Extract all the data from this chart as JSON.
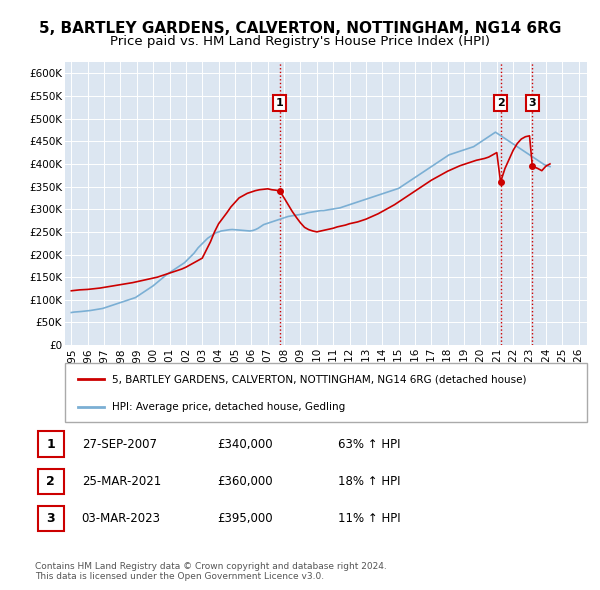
{
  "title": "5, BARTLEY GARDENS, CALVERTON, NOTTINGHAM, NG14 6RG",
  "subtitle": "Price paid vs. HM Land Registry's House Price Index (HPI)",
  "ylabel_ticks": [
    "£0",
    "£50K",
    "£100K",
    "£150K",
    "£200K",
    "£250K",
    "£300K",
    "£350K",
    "£400K",
    "£450K",
    "£500K",
    "£550K",
    "£600K"
  ],
  "ytick_values": [
    0,
    50000,
    100000,
    150000,
    200000,
    250000,
    300000,
    350000,
    400000,
    450000,
    500000,
    550000,
    600000
  ],
  "ylim": [
    0,
    625000
  ],
  "xlim_start": 1994.6,
  "xlim_end": 2026.5,
  "xticklabels": [
    "1995",
    "1996",
    "1997",
    "1998",
    "1999",
    "2000",
    "2001",
    "2002",
    "2003",
    "2004",
    "2005",
    "2006",
    "2007",
    "2008",
    "2009",
    "2010",
    "2011",
    "2012",
    "2013",
    "2014",
    "2015",
    "2016",
    "2017",
    "2018",
    "2019",
    "2020",
    "2021",
    "2022",
    "2023",
    "2024",
    "2025",
    "2026"
  ],
  "xtick_values": [
    1995,
    1996,
    1997,
    1998,
    1999,
    2000,
    2001,
    2002,
    2003,
    2004,
    2005,
    2006,
    2007,
    2008,
    2009,
    2010,
    2011,
    2012,
    2013,
    2014,
    2015,
    2016,
    2017,
    2018,
    2019,
    2020,
    2021,
    2022,
    2023,
    2024,
    2025,
    2026
  ],
  "property_color": "#cc0000",
  "hpi_color": "#7bafd4",
  "background_color": "#dce6f1",
  "sale1_x": 2007.74,
  "sale1_y": 340000,
  "sale1_label": "1",
  "sale2_x": 2021.23,
  "sale2_y": 360000,
  "sale2_label": "2",
  "sale3_x": 2023.17,
  "sale3_y": 395000,
  "sale3_label": "3",
  "legend_property": "5, BARTLEY GARDENS, CALVERTON, NOTTINGHAM, NG14 6RG (detached house)",
  "legend_hpi": "HPI: Average price, detached house, Gedling",
  "table_rows": [
    {
      "num": "1",
      "date": "27-SEP-2007",
      "price": "£340,000",
      "change": "63% ↑ HPI"
    },
    {
      "num": "2",
      "date": "25-MAR-2021",
      "price": "£360,000",
      "change": "18% ↑ HPI"
    },
    {
      "num": "3",
      "date": "03-MAR-2023",
      "price": "£395,000",
      "change": "11% ↑ HPI"
    }
  ],
  "footer": "Contains HM Land Registry data © Crown copyright and database right 2024.\nThis data is licensed under the Open Government Licence v3.0.",
  "vline_color": "#cc0000",
  "vline_style": ":",
  "title_fontsize": 11,
  "subtitle_fontsize": 9.5,
  "tick_fontsize": 7.5,
  "hpi_line_data_x": [
    1995.0,
    1995.083,
    1995.167,
    1995.25,
    1995.333,
    1995.417,
    1995.5,
    1995.583,
    1995.667,
    1995.75,
    1995.833,
    1995.917,
    1996.0,
    1996.083,
    1996.167,
    1996.25,
    1996.333,
    1996.417,
    1996.5,
    1996.583,
    1996.667,
    1996.75,
    1996.833,
    1996.917,
    1997.0,
    1997.083,
    1997.167,
    1997.25,
    1997.333,
    1997.417,
    1997.5,
    1997.583,
    1997.667,
    1997.75,
    1997.833,
    1997.917,
    1998.0,
    1998.083,
    1998.167,
    1998.25,
    1998.333,
    1998.417,
    1998.5,
    1998.583,
    1998.667,
    1998.75,
    1998.833,
    1998.917,
    1999.0,
    1999.083,
    1999.167,
    1999.25,
    1999.333,
    1999.417,
    1999.5,
    1999.583,
    1999.667,
    1999.75,
    1999.833,
    1999.917,
    2000.0,
    2000.083,
    2000.167,
    2000.25,
    2000.333,
    2000.417,
    2000.5,
    2000.583,
    2000.667,
    2000.75,
    2000.833,
    2000.917,
    2001.0,
    2001.083,
    2001.167,
    2001.25,
    2001.333,
    2001.417,
    2001.5,
    2001.583,
    2001.667,
    2001.75,
    2001.833,
    2001.917,
    2002.0,
    2002.083,
    2002.167,
    2002.25,
    2002.333,
    2002.417,
    2002.5,
    2002.583,
    2002.667,
    2002.75,
    2002.833,
    2002.917,
    2003.0,
    2003.083,
    2003.167,
    2003.25,
    2003.333,
    2003.417,
    2003.5,
    2003.583,
    2003.667,
    2003.75,
    2003.833,
    2003.917,
    2004.0,
    2004.083,
    2004.167,
    2004.25,
    2004.333,
    2004.417,
    2004.5,
    2004.583,
    2004.667,
    2004.75,
    2004.833,
    2004.917,
    2005.0,
    2005.083,
    2005.167,
    2005.25,
    2005.333,
    2005.417,
    2005.5,
    2005.583,
    2005.667,
    2005.75,
    2005.833,
    2005.917,
    2006.0,
    2006.083,
    2006.167,
    2006.25,
    2006.333,
    2006.417,
    2006.5,
    2006.583,
    2006.667,
    2006.75,
    2006.833,
    2006.917,
    2007.0,
    2007.083,
    2007.167,
    2007.25,
    2007.333,
    2007.417,
    2007.5,
    2007.583,
    2007.667,
    2007.75,
    2007.833,
    2007.917,
    2008.0,
    2008.083,
    2008.167,
    2008.25,
    2008.333,
    2008.417,
    2008.5,
    2008.583,
    2008.667,
    2008.75,
    2008.833,
    2008.917,
    2009.0,
    2009.083,
    2009.167,
    2009.25,
    2009.333,
    2009.417,
    2009.5,
    2009.583,
    2009.667,
    2009.75,
    2009.833,
    2009.917,
    2010.0,
    2010.083,
    2010.167,
    2010.25,
    2010.333,
    2010.417,
    2010.5,
    2010.583,
    2010.667,
    2010.75,
    2010.833,
    2010.917,
    2011.0,
    2011.083,
    2011.167,
    2011.25,
    2011.333,
    2011.417,
    2011.5,
    2011.583,
    2011.667,
    2011.75,
    2011.833,
    2011.917,
    2012.0,
    2012.083,
    2012.167,
    2012.25,
    2012.333,
    2012.417,
    2012.5,
    2012.583,
    2012.667,
    2012.75,
    2012.833,
    2012.917,
    2013.0,
    2013.083,
    2013.167,
    2013.25,
    2013.333,
    2013.417,
    2013.5,
    2013.583,
    2013.667,
    2013.75,
    2013.833,
    2013.917,
    2014.0,
    2014.083,
    2014.167,
    2014.25,
    2014.333,
    2014.417,
    2014.5,
    2014.583,
    2014.667,
    2014.75,
    2014.833,
    2014.917,
    2015.0,
    2015.083,
    2015.167,
    2015.25,
    2015.333,
    2015.417,
    2015.5,
    2015.583,
    2015.667,
    2015.75,
    2015.833,
    2015.917,
    2016.0,
    2016.083,
    2016.167,
    2016.25,
    2016.333,
    2016.417,
    2016.5,
    2016.583,
    2016.667,
    2016.75,
    2016.833,
    2016.917,
    2017.0,
    2017.083,
    2017.167,
    2017.25,
    2017.333,
    2017.417,
    2017.5,
    2017.583,
    2017.667,
    2017.75,
    2017.833,
    2017.917,
    2018.0,
    2018.083,
    2018.167,
    2018.25,
    2018.333,
    2018.417,
    2018.5,
    2018.583,
    2018.667,
    2018.75,
    2018.833,
    2018.917,
    2019.0,
    2019.083,
    2019.167,
    2019.25,
    2019.333,
    2019.417,
    2019.5,
    2019.583,
    2019.667,
    2019.75,
    2019.833,
    2019.917,
    2020.0,
    2020.083,
    2020.167,
    2020.25,
    2020.333,
    2020.417,
    2020.5,
    2020.583,
    2020.667,
    2020.75,
    2020.833,
    2020.917,
    2021.0,
    2021.083,
    2021.167,
    2021.25,
    2021.333,
    2021.417,
    2021.5,
    2021.583,
    2021.667,
    2021.75,
    2021.833,
    2021.917,
    2022.0,
    2022.083,
    2022.167,
    2022.25,
    2022.333,
    2022.417,
    2022.5,
    2022.583,
    2022.667,
    2022.75,
    2022.833,
    2022.917,
    2023.0,
    2023.083,
    2023.167,
    2023.25,
    2023.333,
    2023.417,
    2023.5,
    2023.583,
    2023.667,
    2023.75,
    2023.833,
    2023.917,
    2024.0,
    2024.083,
    2024.167,
    2024.25
  ],
  "hpi_line_data_y": [
    72000,
    72500,
    73000,
    73200,
    73500,
    73800,
    74000,
    74200,
    74500,
    74800,
    75000,
    75200,
    75500,
    76000,
    76500,
    77000,
    77500,
    78000,
    78500,
    79000,
    79500,
    80000,
    80500,
    81000,
    82000,
    83000,
    84000,
    85000,
    86000,
    87000,
    88000,
    89000,
    90000,
    91000,
    92000,
    93000,
    94000,
    95000,
    96000,
    97000,
    98000,
    99000,
    100000,
    101000,
    102000,
    103000,
    104000,
    105000,
    107000,
    109000,
    111000,
    113000,
    115000,
    117000,
    119000,
    121000,
    123000,
    125000,
    127000,
    129000,
    131000,
    133500,
    136000,
    138500,
    141000,
    143500,
    146000,
    148500,
    151000,
    153500,
    156000,
    158000,
    160000,
    162000,
    164000,
    166000,
    168000,
    170000,
    172000,
    174000,
    176000,
    178000,
    180000,
    182000,
    185000,
    188000,
    191000,
    194000,
    197000,
    200000,
    203000,
    207000,
    211000,
    215000,
    218000,
    221000,
    224000,
    227000,
    230000,
    233000,
    236000,
    238000,
    240000,
    242000,
    244000,
    246000,
    248000,
    249000,
    250000,
    251000,
    252000,
    252500,
    253000,
    253500,
    254000,
    254500,
    254800,
    255000,
    255200,
    255000,
    254800,
    254500,
    254200,
    254000,
    253800,
    253500,
    253200,
    253000,
    252800,
    252500,
    252200,
    252000,
    252500,
    253000,
    254000,
    255000,
    256500,
    258000,
    260000,
    262000,
    264000,
    266000,
    267000,
    268000,
    269000,
    270000,
    271000,
    272000,
    273000,
    274000,
    275000,
    276000,
    277000,
    278000,
    279000,
    280000,
    281000,
    282000,
    283000,
    284000,
    284500,
    285000,
    285500,
    286000,
    286500,
    287000,
    287500,
    288000,
    288500,
    289000,
    289500,
    290000,
    291000,
    292000,
    292500,
    293000,
    293500,
    294000,
    294500,
    295000,
    295500,
    296000,
    296500,
    297000,
    297000,
    297000,
    297500,
    298000,
    298500,
    299000,
    299500,
    300000,
    300500,
    301000,
    301500,
    302000,
    302500,
    303000,
    304000,
    305000,
    306000,
    307000,
    308000,
    309000,
    310000,
    311000,
    312000,
    313000,
    314000,
    315000,
    316000,
    317000,
    318000,
    319000,
    320000,
    321000,
    322000,
    323000,
    324000,
    325000,
    326000,
    327000,
    328000,
    329000,
    330000,
    331000,
    332000,
    333000,
    334000,
    335000,
    336000,
    337000,
    338000,
    339000,
    340000,
    341000,
    342000,
    343000,
    344000,
    345000,
    346000,
    348000,
    350000,
    352000,
    354000,
    356000,
    358000,
    360000,
    362000,
    364000,
    366000,
    368000,
    370000,
    372000,
    374000,
    376000,
    378000,
    380000,
    382000,
    384000,
    386000,
    388000,
    390000,
    392000,
    394000,
    396000,
    398000,
    400000,
    402000,
    404000,
    406000,
    408000,
    410000,
    412000,
    414000,
    416000,
    418000,
    420000,
    421000,
    422000,
    423000,
    424000,
    425000,
    426000,
    427000,
    428000,
    429000,
    430000,
    431000,
    432000,
    433000,
    434000,
    435000,
    436000,
    437000,
    438000,
    440000,
    442000,
    444000,
    446000,
    448000,
    450000,
    452000,
    454000,
    456000,
    458000,
    460000,
    462000,
    464000,
    466000,
    468000,
    470000,
    468000,
    466000,
    464000,
    462000,
    460000,
    458000,
    456000,
    454000,
    452000,
    450000,
    448000,
    446000,
    444000,
    442000,
    440000,
    438000,
    436000,
    434000,
    432000,
    430000,
    428000,
    426000,
    424000,
    422000,
    420000,
    418000,
    416000,
    414000,
    412000,
    410000,
    408000,
    406000,
    404000,
    402000,
    400000,
    398000,
    397000,
    396000,
    395000,
    394000
  ],
  "property_line_data_x": [
    1995.0,
    1995.25,
    1995.5,
    1995.75,
    1996.0,
    1996.25,
    1996.5,
    1996.75,
    1997.0,
    1997.25,
    1997.5,
    1997.75,
    1998.0,
    1998.25,
    1998.5,
    1998.75,
    1999.0,
    1999.25,
    1999.5,
    1999.75,
    2000.0,
    2000.25,
    2000.5,
    2000.75,
    2001.0,
    2001.25,
    2001.5,
    2001.75,
    2002.0,
    2002.25,
    2002.5,
    2002.75,
    2003.0,
    2003.25,
    2003.5,
    2003.75,
    2004.0,
    2004.25,
    2004.5,
    2004.75,
    2005.0,
    2005.25,
    2005.5,
    2005.75,
    2006.0,
    2006.25,
    2006.5,
    2006.75,
    2007.0,
    2007.25,
    2007.5,
    2007.74,
    2008.0,
    2008.25,
    2008.5,
    2008.75,
    2009.0,
    2009.25,
    2009.5,
    2009.75,
    2010.0,
    2010.25,
    2010.5,
    2010.75,
    2011.0,
    2011.25,
    2011.5,
    2011.75,
    2012.0,
    2012.25,
    2012.5,
    2012.75,
    2013.0,
    2013.25,
    2013.5,
    2013.75,
    2014.0,
    2014.25,
    2014.5,
    2014.75,
    2015.0,
    2015.25,
    2015.5,
    2015.75,
    2016.0,
    2016.25,
    2016.5,
    2016.75,
    2017.0,
    2017.25,
    2017.5,
    2017.75,
    2018.0,
    2018.25,
    2018.5,
    2018.75,
    2019.0,
    2019.25,
    2019.5,
    2019.75,
    2020.0,
    2020.25,
    2020.5,
    2020.75,
    2021.0,
    2021.23,
    2021.5,
    2021.75,
    2022.0,
    2022.25,
    2022.5,
    2022.75,
    2023.0,
    2023.17,
    2023.5,
    2023.75,
    2024.0,
    2024.25
  ],
  "property_line_data_y": [
    120000,
    121000,
    122000,
    122500,
    123000,
    124000,
    125000,
    126000,
    127500,
    129000,
    130500,
    132000,
    133500,
    135000,
    136500,
    138000,
    140000,
    142000,
    144000,
    146000,
    148000,
    150000,
    153000,
    156000,
    159000,
    162000,
    165000,
    168000,
    172000,
    177000,
    182000,
    187000,
    192000,
    210000,
    228000,
    250000,
    268000,
    280000,
    292000,
    305000,
    315000,
    325000,
    330000,
    335000,
    338000,
    341000,
    343000,
    344000,
    345000,
    343000,
    342000,
    340000,
    325000,
    310000,
    295000,
    282000,
    270000,
    260000,
    255000,
    252000,
    250000,
    252000,
    254000,
    256000,
    258000,
    261000,
    263000,
    265000,
    268000,
    270000,
    272000,
    275000,
    278000,
    282000,
    286000,
    290000,
    295000,
    300000,
    305000,
    310000,
    316000,
    322000,
    328000,
    334000,
    340000,
    346000,
    352000,
    358000,
    364000,
    369000,
    374000,
    379000,
    384000,
    388000,
    392000,
    396000,
    399000,
    402000,
    405000,
    408000,
    410000,
    412000,
    415000,
    420000,
    425000,
    360000,
    390000,
    410000,
    430000,
    445000,
    455000,
    460000,
    462000,
    395000,
    390000,
    385000,
    395000,
    400000
  ]
}
